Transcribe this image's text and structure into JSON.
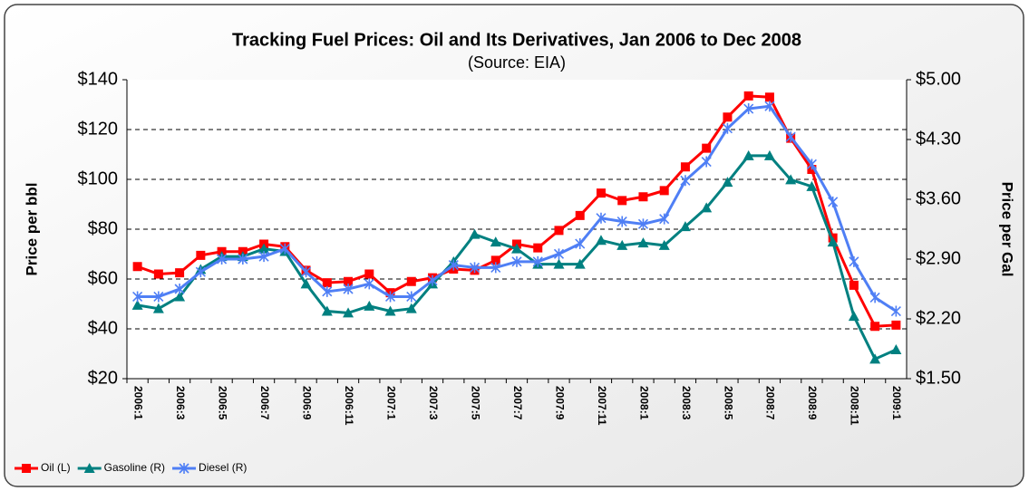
{
  "chart_data": {
    "type": "line",
    "title": "Tracking Fuel Prices: Oil and Its Derivatives, Jan 2006 to Dec 2008",
    "subtitle": "(Source: EIA)",
    "y_label": "Price per bbl",
    "y2_label": "Price per Gal",
    "categories": [
      "2006:1",
      null,
      "2006:3",
      null,
      "2006:5",
      null,
      "2006:7",
      null,
      "2006:9",
      null,
      "2006:11",
      null,
      "2007:1",
      null,
      "2007:3",
      null,
      "2007:5",
      null,
      "2007:7",
      null,
      "2007:9",
      null,
      "2007:11",
      null,
      "2008:1",
      null,
      "2008:3",
      null,
      "2008:5",
      null,
      "2008:7",
      null,
      "2008:9",
      null,
      "2008:11",
      null,
      "2009:1"
    ],
    "ylim": [
      20,
      140
    ],
    "yticks": [
      {
        "value": 20,
        "label": "$20"
      },
      {
        "value": 40,
        "label": "$40"
      },
      {
        "value": 60,
        "label": "$60"
      },
      {
        "value": 80,
        "label": "$80"
      },
      {
        "value": 100,
        "label": "$100"
      },
      {
        "value": 120,
        "label": "$120"
      },
      {
        "value": 140,
        "label": "$140"
      }
    ],
    "y2lim": [
      1.5,
      5.0
    ],
    "y2ticks": [
      {
        "value": 1.5,
        "label": "$1.50"
      },
      {
        "value": 2.2,
        "label": "$2.20"
      },
      {
        "value": 2.9,
        "label": "$2.90"
      },
      {
        "value": 3.6,
        "label": "$3.60"
      },
      {
        "value": 4.3,
        "label": "$4.30"
      },
      {
        "value": 5.0,
        "label": "$5.00"
      }
    ],
    "grid": true,
    "legend": "bottom-left",
    "series": [
      {
        "name": "Oil (L)",
        "color": "#ff0000",
        "marker": "square",
        "axis": "y",
        "values": [
          65,
          62,
          62.5,
          69.5,
          71,
          71,
          74,
          73,
          63.5,
          58.5,
          59,
          62,
          54.5,
          59,
          60.5,
          64,
          63.5,
          67.5,
          74,
          72.5,
          79.5,
          85.5,
          94.5,
          91.5,
          93,
          95.5,
          105,
          112.5,
          125,
          133.5,
          133,
          116.5,
          104,
          76.5,
          57.5,
          41,
          41.5
        ]
      },
      {
        "name": "Gasoline (R)",
        "color": "#008080",
        "marker": "triangle",
        "axis": "y2",
        "values": [
          2.36,
          2.32,
          2.46,
          2.78,
          2.93,
          2.93,
          3.02,
          2.99,
          2.61,
          2.29,
          2.27,
          2.35,
          2.29,
          2.32,
          2.61,
          2.87,
          3.19,
          3.1,
          3.02,
          2.84,
          2.84,
          2.84,
          3.12,
          3.06,
          3.09,
          3.06,
          3.28,
          3.5,
          3.8,
          4.11,
          4.11,
          3.83,
          3.75,
          3.1,
          2.23,
          1.73,
          1.84
        ]
      },
      {
        "name": "Diesel (R)",
        "color": "#4f7ff5",
        "marker": "star",
        "axis": "y2",
        "values": [
          2.46,
          2.46,
          2.55,
          2.75,
          2.9,
          2.9,
          2.93,
          3.02,
          2.75,
          2.52,
          2.55,
          2.61,
          2.46,
          2.46,
          2.65,
          2.83,
          2.8,
          2.8,
          2.87,
          2.87,
          2.96,
          3.08,
          3.38,
          3.34,
          3.31,
          3.37,
          3.82,
          4.04,
          4.43,
          4.66,
          4.69,
          4.33,
          4.01,
          3.57,
          2.87,
          2.45,
          2.29
        ]
      }
    ]
  }
}
